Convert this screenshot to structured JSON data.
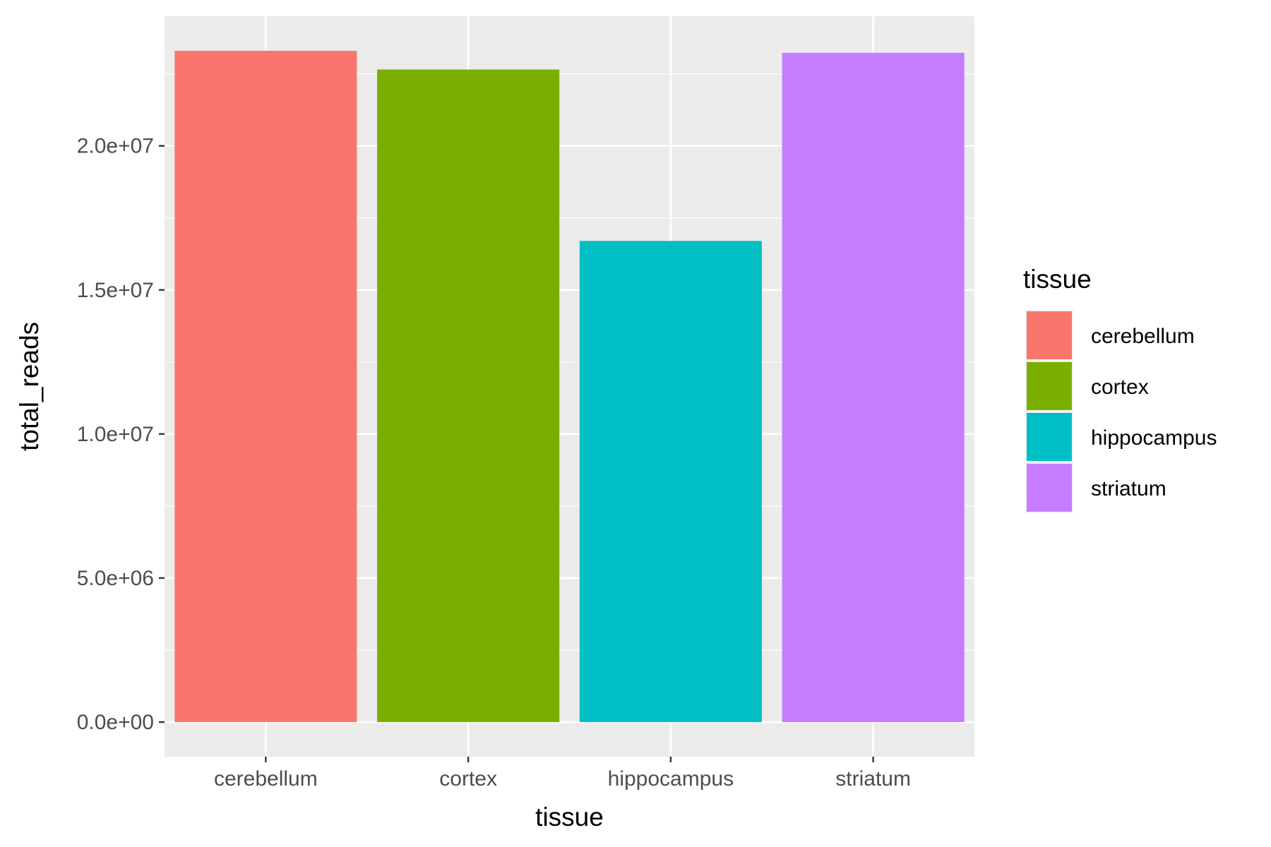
{
  "chart_data": {
    "type": "bar",
    "categories": [
      "cerebellum",
      "cortex",
      "hippocampus",
      "striatum"
    ],
    "values": [
      23300000,
      22650000,
      16700000,
      23230000
    ],
    "xlabel": "tissue",
    "ylabel": "total_reads",
    "ylim": [
      -1200000,
      24500000
    ],
    "yticks": [
      0,
      5000000,
      10000000,
      15000000,
      20000000
    ],
    "ytick_labels": [
      "0.0e+00",
      "5.0e+06",
      "1.0e+07",
      "1.5e+07",
      "2.0e+07"
    ],
    "grid": true,
    "legend": {
      "title": "tissue",
      "position": "right",
      "entries": [
        "cerebellum",
        "cortex",
        "hippocampus",
        "striatum"
      ]
    },
    "colors": [
      "#F8766D",
      "#7CAE00",
      "#00BFC4",
      "#C77CFF"
    ],
    "panel_background": "#EBEBEB"
  }
}
